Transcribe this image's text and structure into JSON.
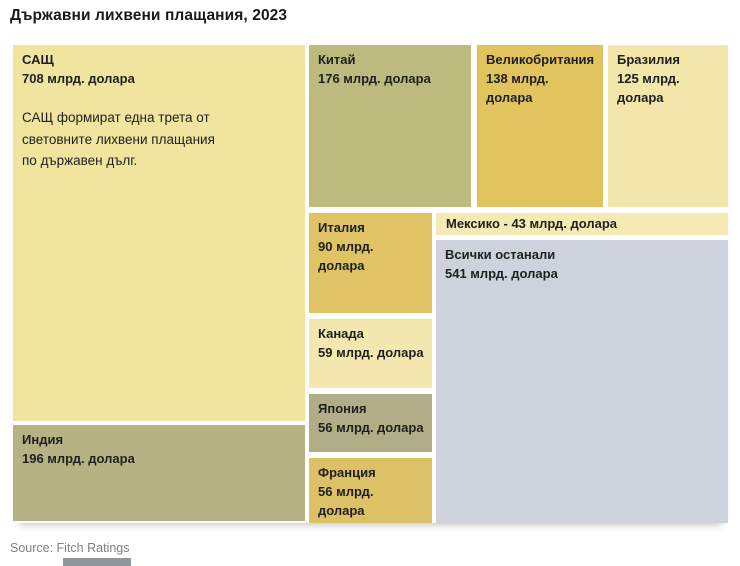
{
  "page": {
    "title": "Държавни лихвени плащания, 2023",
    "source": "Source: Fitch Ratings"
  },
  "colors": {
    "page_background": "#ffffff",
    "tile_text": "#1f1f1f",
    "source_text": "#818181",
    "americas_group": "#f2e6a8",
    "asia_group": "#b7b483",
    "europe_group": "#e0c363",
    "rest_of_world_group": "#ced2dc",
    "bottom_artifact": "#8f969c"
  },
  "chart_data": {
    "type": "treemap",
    "title": "Държавни лихвени плащания, 2023",
    "unit": "млрд. долара",
    "source": "Fitch Ratings",
    "nodes": {
      "usa": {
        "name": "САЩ",
        "value": 708,
        "value_label": "708 млрд. долара",
        "note": "САЩ формират една трета от световните лихвени плащания по държавен дълг.",
        "color": "#f0e49f"
      },
      "india": {
        "name": "Индия",
        "value": 196,
        "value_label": "196 млрд. долара",
        "color": "#b6b284"
      },
      "china": {
        "name": "Китай",
        "value": 176,
        "value_label": "176 млрд. долара",
        "color": "#bdba7d"
      },
      "uk": {
        "name": "Великобритания",
        "value": 138,
        "value_label": "138 млрд. долара",
        "color": "#e2c45f"
      },
      "brazil": {
        "name": "Бразилия",
        "value": 125,
        "value_label": "125 млрд. долара",
        "color": "#f3e6aa"
      },
      "italy": {
        "name": "Италия",
        "value": 90,
        "value_label": "90 млрд. долара",
        "color": "#e0c364"
      },
      "canada": {
        "name": "Канада",
        "value": 59,
        "value_label": "59 млрд. долара",
        "color": "#f4e8b0"
      },
      "japan": {
        "name": "Япония",
        "value": 56,
        "value_label": "56 млрд. долара",
        "color": "#b1ae87"
      },
      "france": {
        "name": "Франция",
        "value": 56,
        "value_label": "56 млрд. долара",
        "color": "#ddc166"
      },
      "mexico": {
        "name": "Мексико",
        "value": 43,
        "value_label": "43 млрд. долара",
        "label": "Мексико - 43 млрд. долара",
        "color": "#f5e9b4"
      },
      "others": {
        "name": "Всички останали",
        "value": 541,
        "value_label": "541 млрд. долара",
        "color": "#ced2dc"
      }
    }
  }
}
